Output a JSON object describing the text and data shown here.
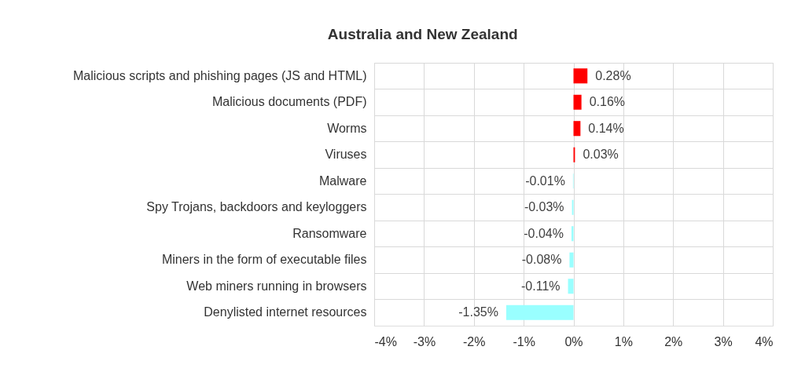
{
  "chart_data": {
    "type": "bar",
    "orientation": "horizontal",
    "title": "Australia and New Zealand",
    "categories": [
      "Malicious scripts and phishing pages (JS and HTML)",
      "Malicious documents (PDF)",
      "Worms",
      "Viruses",
      "Malware",
      "Spy Trojans, backdoors and keyloggers",
      "Ransomware",
      "Miners in the form of executable files",
      "Web miners running in browsers",
      "Denylisted internet resources"
    ],
    "values": [
      0.28,
      0.16,
      0.14,
      0.03,
      -0.01,
      -0.03,
      -0.04,
      -0.08,
      -0.11,
      -1.35
    ],
    "colors": [
      "#ff0000",
      "#ff0000",
      "#ff0000",
      "#ff0000",
      "#99ffff",
      "#99ffff",
      "#99ffff",
      "#99ffff",
      "#99ffff",
      "#99ffff"
    ],
    "value_labels": [
      "0.28%",
      "0.16%",
      "0.14%",
      "0.03%",
      "-0.01%",
      "-0.03%",
      "-0.04%",
      "-0.08%",
      "-0.11%",
      "-1.35%"
    ],
    "xlim": [
      -4,
      4
    ],
    "xticks": [
      {
        "value": -4,
        "label": "-4%"
      },
      {
        "value": -3,
        "label": "-3%"
      },
      {
        "value": -2,
        "label": "-2%"
      },
      {
        "value": -1,
        "label": "-1%"
      },
      {
        "value": 0,
        "label": "0%"
      },
      {
        "value": 1,
        "label": "1%"
      },
      {
        "value": 2,
        "label": "2%"
      },
      {
        "value": 3,
        "label": "3%"
      },
      {
        "value": 4,
        "label": "4%"
      }
    ],
    "grid": true
  }
}
